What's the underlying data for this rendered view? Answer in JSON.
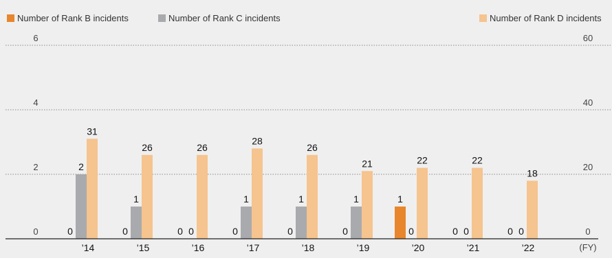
{
  "colors": {
    "B": "#e8862e",
    "C": "#a9aaad",
    "D": "#f5c48f"
  },
  "chart_data": {
    "type": "bar",
    "categories": [
      "’14",
      "’15",
      "’16",
      "’17",
      "’18",
      "’19",
      "’20",
      "’21",
      "’22"
    ],
    "x_unit": "(FY)",
    "series": [
      {
        "name": "Number of Rank B incidents",
        "axis": "left",
        "values": [
          0,
          0,
          0,
          0,
          0,
          0,
          1,
          0,
          0
        ]
      },
      {
        "name": "Number of Rank C incidents",
        "axis": "left",
        "values": [
          2,
          1,
          0,
          1,
          1,
          1,
          0,
          0,
          0
        ]
      },
      {
        "name": "Number of Rank D incidents",
        "axis": "right",
        "values": [
          31,
          26,
          26,
          28,
          26,
          21,
          22,
          22,
          18
        ]
      }
    ],
    "y_left": {
      "lim": [
        0,
        6
      ],
      "ticks": [
        0,
        2,
        4,
        6
      ]
    },
    "y_right": {
      "lim": [
        0,
        60
      ],
      "ticks": [
        0,
        20,
        40,
        60
      ]
    },
    "grid": true,
    "legend_position": "top"
  }
}
